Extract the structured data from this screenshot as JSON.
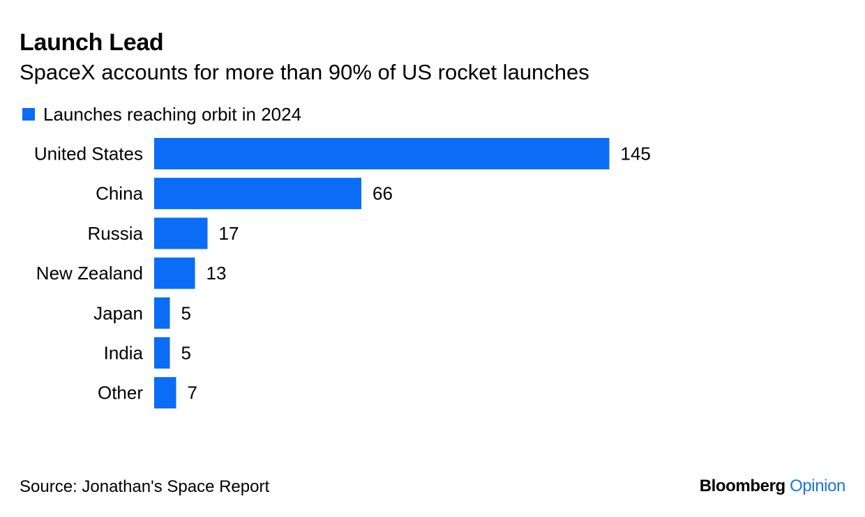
{
  "title": "Launch Lead",
  "subtitle": "SpaceX accounts for more than 90% of US rocket launches",
  "source": "Source: Jonathan's Space Report",
  "brand": {
    "main": "Bloomberg",
    "sub": "Opinion"
  },
  "colors": {
    "bar": "#0b6cf5",
    "brand_accent": "#1a73e8"
  },
  "chart_data": {
    "type": "bar",
    "orientation": "horizontal",
    "categories": [
      "United States",
      "China",
      "Russia",
      "New Zealand",
      "Japan",
      "India",
      "Other"
    ],
    "series": [
      {
        "name": "Launches reaching orbit in 2024",
        "values": [
          145,
          66,
          17,
          13,
          5,
          5,
          7
        ]
      }
    ],
    "legend_position": "top-left",
    "data_labels": true,
    "grid": false
  }
}
